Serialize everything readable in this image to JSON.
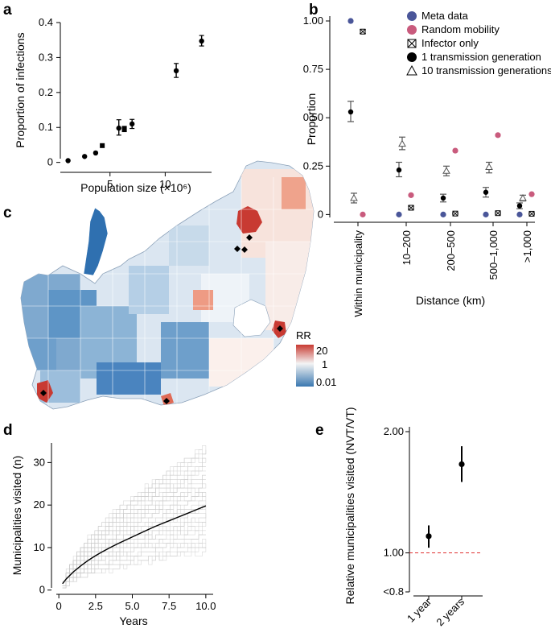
{
  "colors": {
    "meta": "#4a5699",
    "random": "#c95b7d",
    "black": "#000000",
    "grey": "#555555",
    "redline": "#e03030",
    "rr_high": "#c83a32",
    "rr_mid": "#f4f4f4",
    "rr_low": "#3a78b0"
  },
  "panels": {
    "a": "a",
    "b": "b",
    "c": "c",
    "d": "d",
    "e": "e"
  },
  "chart_data": [
    {
      "id": "a",
      "type": "scatter",
      "title": "",
      "xlabel": "Population size (×10⁶)",
      "ylabel": "Proportion of infections",
      "xlim": [
        0.5,
        14.2
      ],
      "ylim": [
        -0.01,
        0.4
      ],
      "xticks": [
        5,
        10
      ],
      "xtick_labels": [
        "5",
        "10"
      ],
      "yticks": [
        0,
        0.1,
        0.2,
        0.3,
        0.4
      ],
      "ytick_labels": [
        "0",
        "0.1",
        "0.2",
        "0.3",
        "0.4"
      ],
      "points": [
        {
          "x": 1.2,
          "y": 0.005,
          "lo": 0.005,
          "hi": 0.005,
          "marker": "circle"
        },
        {
          "x": 2.7,
          "y": 0.017,
          "lo": 0.017,
          "hi": 0.017,
          "marker": "circle"
        },
        {
          "x": 3.7,
          "y": 0.027,
          "lo": 0.027,
          "hi": 0.027,
          "marker": "circle"
        },
        {
          "x": 4.3,
          "y": 0.048,
          "lo": 0.048,
          "hi": 0.048,
          "marker": "square"
        },
        {
          "x": 5.8,
          "y": 0.098,
          "lo": 0.078,
          "hi": 0.122,
          "marker": "circle"
        },
        {
          "x": 6.3,
          "y": 0.095,
          "lo": 0.088,
          "hi": 0.103,
          "marker": "square"
        },
        {
          "x": 7.0,
          "y": 0.11,
          "lo": 0.097,
          "hi": 0.123,
          "marker": "circle"
        },
        {
          "x": 11.0,
          "y": 0.262,
          "lo": 0.243,
          "hi": 0.283,
          "marker": "circle"
        },
        {
          "x": 13.3,
          "y": 0.347,
          "lo": 0.333,
          "hi": 0.363,
          "marker": "circle"
        }
      ]
    },
    {
      "id": "b",
      "type": "scatter",
      "title": "",
      "xlabel": "Distance (km)",
      "ylabel": "Proportion",
      "ylim": [
        -0.04,
        1.05
      ],
      "yticks": [
        0,
        0.25,
        0.5,
        0.75,
        1.0
      ],
      "ytick_labels": [
        "0",
        "0.25",
        "0.50",
        "0.75",
        "1.00"
      ],
      "categories": [
        "Within municipality",
        "10–200",
        "200–500",
        "500–1,000",
        ">1,000"
      ],
      "legend": [
        {
          "key": "meta",
          "label": "Meta data",
          "marker": "dot-meta"
        },
        {
          "key": "random",
          "label": "Random mobility",
          "marker": "dot-random"
        },
        {
          "key": "infector",
          "label": "Infector only",
          "marker": "xbox"
        },
        {
          "key": "one_gen",
          "label": "1 transmission generation",
          "marker": "dot-black"
        },
        {
          "key": "ten_gen",
          "label": "10 transmission generations",
          "marker": "triangle"
        }
      ],
      "series": [
        {
          "name": "Meta data",
          "values": [
            1.0,
            0.0,
            0.0,
            0.0,
            0.0
          ]
        },
        {
          "name": "Random mobility",
          "values": [
            0.0,
            0.1,
            0.33,
            0.41,
            0.105
          ]
        },
        {
          "name": "Infector only",
          "values": [
            0.945,
            0.035,
            0.005,
            0.007,
            0.004
          ],
          "lo": [
            0.935,
            0.028,
            0.002,
            0.003,
            0.001
          ],
          "hi": [
            0.955,
            0.043,
            0.009,
            0.011,
            0.007
          ]
        },
        {
          "name": "1 transmission generation",
          "values": [
            0.53,
            0.23,
            0.085,
            0.115,
            0.045
          ],
          "lo": [
            0.48,
            0.195,
            0.065,
            0.09,
            0.03
          ],
          "hi": [
            0.585,
            0.27,
            0.105,
            0.14,
            0.06
          ]
        },
        {
          "name": "10 transmission generations",
          "values": [
            0.085,
            0.365,
            0.225,
            0.245,
            0.085
          ],
          "lo": [
            0.06,
            0.335,
            0.2,
            0.215,
            0.07
          ],
          "hi": [
            0.11,
            0.4,
            0.25,
            0.27,
            0.1
          ]
        }
      ]
    },
    {
      "id": "d",
      "type": "line",
      "title": "",
      "xlabel": "Years",
      "ylabel": "Municipalities visited (n)",
      "xlim": [
        -0.5,
        10.5
      ],
      "ylim": [
        -1,
        35
      ],
      "xticks": [
        0,
        2.5,
        5,
        7.5,
        10
      ],
      "xtick_labels": [
        "0",
        "2.5",
        "5.0",
        "7.5",
        "10.0"
      ],
      "yticks": [
        0,
        10,
        20,
        30
      ],
      "ytick_labels": [
        "0",
        "10",
        "20",
        "30"
      ],
      "mean_curve": {
        "x": [
          0.25,
          0.5,
          1,
          1.5,
          2,
          2.5,
          3,
          3.5,
          4,
          4.5,
          5,
          5.5,
          6,
          6.5,
          7,
          7.5,
          8,
          8.5,
          9,
          9.5,
          10
        ],
        "y": [
          1.5,
          2.6,
          4.3,
          5.7,
          7.0,
          8.1,
          9.1,
          10.0,
          10.9,
          11.7,
          12.5,
          13.3,
          14.1,
          14.9,
          15.6,
          16.3,
          17.0,
          17.7,
          18.4,
          19.1,
          19.8
        ]
      },
      "envelope": {
        "lower_end": 9,
        "upper_end": 34
      }
    },
    {
      "id": "e",
      "type": "scatter",
      "title": "",
      "xlabel": "",
      "ylabel": "Relative municipalities visited (NVT/VT)",
      "ylim": [
        0.72,
        2.08
      ],
      "yticks": [
        0.8,
        1.0,
        2.0
      ],
      "ytick_labels": [
        "<0.8",
        "1.00",
        "2.00"
      ],
      "categories": [
        "1 year",
        "2 years"
      ],
      "values": [
        1.1,
        1.66
      ],
      "lo": [
        1.03,
        1.5
      ],
      "hi": [
        1.17,
        1.84
      ],
      "reference_line": 1.0
    }
  ],
  "map": {
    "legend_title": "RR",
    "legend_labels": [
      "20",
      "1",
      "0.01"
    ]
  }
}
